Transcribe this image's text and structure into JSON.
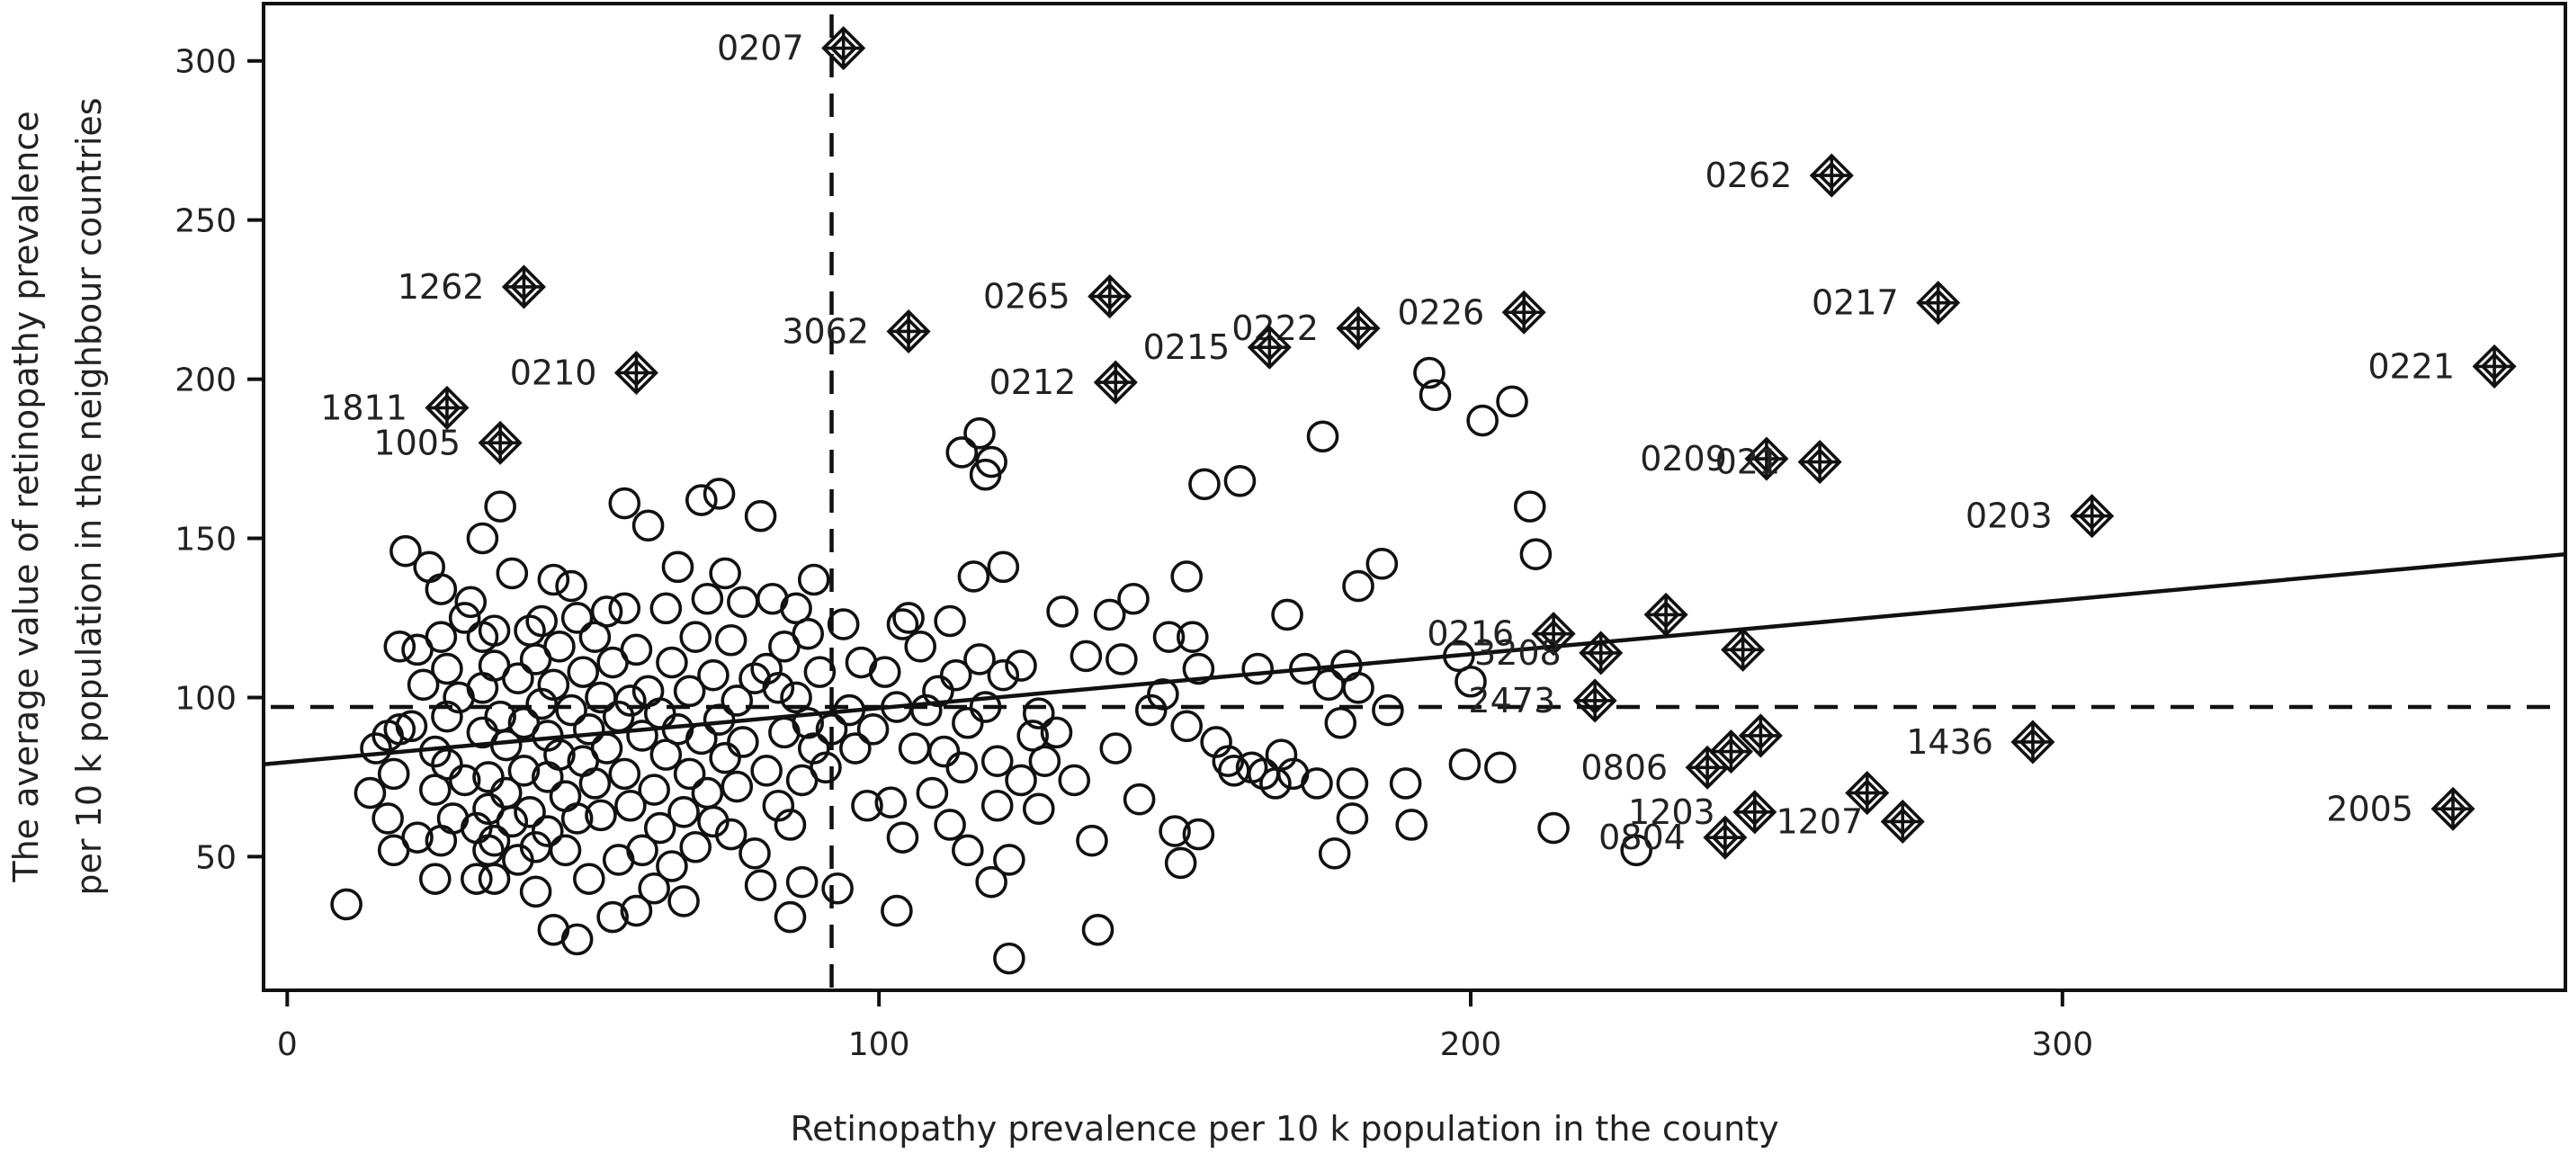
{
  "chart_data": {
    "type": "scatter",
    "title": "",
    "xlabel": "Retinopathy prevalence per 10 k population in the county",
    "ylabel_lines": [
      "The average value of retinopathy prevalence",
      "per 10 k population in the neighbour countries"
    ],
    "xlim": [
      -4,
      385
    ],
    "ylim": [
      8,
      318
    ],
    "x_ticks": [
      0,
      100,
      200,
      300
    ],
    "y_ticks": [
      50,
      100,
      150,
      200,
      250,
      300
    ],
    "reference_lines": {
      "vertical_x": 92,
      "horizontal_y": 97
    },
    "regression_line": {
      "x": [
        -4,
        385
      ],
      "y": [
        79,
        145
      ]
    },
    "outliers": [
      {
        "label": "0207",
        "x": 94,
        "y": 304
      },
      {
        "label": "0262",
        "x": 261,
        "y": 264
      },
      {
        "label": "1262",
        "x": 40,
        "y": 229
      },
      {
        "label": "0265",
        "x": 139,
        "y": 226
      },
      {
        "label": "0217",
        "x": 279,
        "y": 224
      },
      {
        "label": "0226",
        "x": 209,
        "y": 221
      },
      {
        "label": "0222",
        "x": 181,
        "y": 216
      },
      {
        "label": "3062",
        "x": 105,
        "y": 215
      },
      {
        "label": "0215",
        "x": 166,
        "y": 210
      },
      {
        "label": "0221",
        "x": 373,
        "y": 204
      },
      {
        "label": "0210",
        "x": 59,
        "y": 202
      },
      {
        "label": "0212",
        "x": 140,
        "y": 199
      },
      {
        "label": "1811",
        "x": 27,
        "y": 191
      },
      {
        "label": "1005",
        "x": 36,
        "y": 180
      },
      {
        "label": "0209",
        "x": 250,
        "y": 175
      },
      {
        "label": "021",
        "x": 259,
        "y": 174
      },
      {
        "label": "0203",
        "x": 305,
        "y": 157
      },
      {
        "label": "0216",
        "x": 214,
        "y": 120
      },
      {
        "label": "3208",
        "x": 222,
        "y": 114
      },
      {
        "label": "",
        "x": 233,
        "y": 126
      },
      {
        "label": "",
        "x": 246,
        "y": 115
      },
      {
        "label": "2473",
        "x": 221,
        "y": 99
      },
      {
        "label": "",
        "x": 249,
        "y": 88
      },
      {
        "label": "1436",
        "x": 295,
        "y": 86
      },
      {
        "label": "",
        "x": 244,
        "y": 83
      },
      {
        "label": "0806",
        "x": 240,
        "y": 78
      },
      {
        "label": "",
        "x": 267,
        "y": 70
      },
      {
        "label": "2005",
        "x": 366,
        "y": 65
      },
      {
        "label": "1203",
        "x": 248,
        "y": 64
      },
      {
        "label": "1207",
        "x": 273,
        "y": 61
      },
      {
        "label": "0804",
        "x": 243,
        "y": 56
      }
    ],
    "regular_points": [
      {
        "x": 10,
        "y": 35
      },
      {
        "x": 14,
        "y": 70
      },
      {
        "x": 15,
        "y": 84
      },
      {
        "x": 17,
        "y": 88
      },
      {
        "x": 17,
        "y": 62
      },
      {
        "x": 18,
        "y": 76
      },
      {
        "x": 18,
        "y": 52
      },
      {
        "x": 19,
        "y": 90
      },
      {
        "x": 19,
        "y": 116
      },
      {
        "x": 20,
        "y": 146
      },
      {
        "x": 21,
        "y": 91
      },
      {
        "x": 22,
        "y": 115
      },
      {
        "x": 22,
        "y": 56
      },
      {
        "x": 23,
        "y": 104
      },
      {
        "x": 24,
        "y": 141
      },
      {
        "x": 25,
        "y": 83
      },
      {
        "x": 25,
        "y": 71
      },
      {
        "x": 25,
        "y": 43
      },
      {
        "x": 26,
        "y": 134
      },
      {
        "x": 26,
        "y": 119
      },
      {
        "x": 26,
        "y": 55
      },
      {
        "x": 27,
        "y": 94
      },
      {
        "x": 27,
        "y": 109
      },
      {
        "x": 27,
        "y": 79
      },
      {
        "x": 28,
        "y": 62
      },
      {
        "x": 29,
        "y": 100
      },
      {
        "x": 30,
        "y": 74
      },
      {
        "x": 30,
        "y": 125
      },
      {
        "x": 31,
        "y": 130
      },
      {
        "x": 32,
        "y": 59
      },
      {
        "x": 32,
        "y": 43
      },
      {
        "x": 33,
        "y": 150
      },
      {
        "x": 33,
        "y": 119
      },
      {
        "x": 33,
        "y": 103
      },
      {
        "x": 33,
        "y": 89
      },
      {
        "x": 34,
        "y": 75
      },
      {
        "x": 34,
        "y": 65
      },
      {
        "x": 34,
        "y": 52
      },
      {
        "x": 35,
        "y": 121
      },
      {
        "x": 35,
        "y": 110
      },
      {
        "x": 35,
        "y": 55
      },
      {
        "x": 35,
        "y": 43
      },
      {
        "x": 36,
        "y": 160
      },
      {
        "x": 36,
        "y": 94
      },
      {
        "x": 37,
        "y": 85
      },
      {
        "x": 37,
        "y": 70
      },
      {
        "x": 38,
        "y": 139
      },
      {
        "x": 38,
        "y": 61
      },
      {
        "x": 39,
        "y": 106
      },
      {
        "x": 39,
        "y": 49
      },
      {
        "x": 40,
        "y": 92
      },
      {
        "x": 40,
        "y": 77
      },
      {
        "x": 41,
        "y": 121
      },
      {
        "x": 41,
        "y": 64
      },
      {
        "x": 42,
        "y": 112
      },
      {
        "x": 42,
        "y": 53
      },
      {
        "x": 42,
        "y": 39
      },
      {
        "x": 43,
        "y": 124
      },
      {
        "x": 43,
        "y": 98
      },
      {
        "x": 44,
        "y": 88
      },
      {
        "x": 44,
        "y": 75
      },
      {
        "x": 44,
        "y": 58
      },
      {
        "x": 45,
        "y": 104
      },
      {
        "x": 45,
        "y": 27
      },
      {
        "x": 45,
        "y": 137
      },
      {
        "x": 46,
        "y": 82
      },
      {
        "x": 46,
        "y": 116
      },
      {
        "x": 47,
        "y": 69
      },
      {
        "x": 47,
        "y": 52
      },
      {
        "x": 48,
        "y": 135
      },
      {
        "x": 48,
        "y": 96
      },
      {
        "x": 49,
        "y": 125
      },
      {
        "x": 49,
        "y": 24
      },
      {
        "x": 49,
        "y": 62
      },
      {
        "x": 50,
        "y": 108
      },
      {
        "x": 50,
        "y": 80
      },
      {
        "x": 51,
        "y": 43
      },
      {
        "x": 51,
        "y": 90
      },
      {
        "x": 52,
        "y": 119
      },
      {
        "x": 52,
        "y": 73
      },
      {
        "x": 53,
        "y": 100
      },
      {
        "x": 53,
        "y": 63
      },
      {
        "x": 54,
        "y": 127
      },
      {
        "x": 54,
        "y": 84
      },
      {
        "x": 55,
        "y": 111
      },
      {
        "x": 55,
        "y": 31
      },
      {
        "x": 56,
        "y": 94
      },
      {
        "x": 56,
        "y": 49
      },
      {
        "x": 57,
        "y": 161
      },
      {
        "x": 57,
        "y": 128
      },
      {
        "x": 57,
        "y": 76
      },
      {
        "x": 58,
        "y": 99
      },
      {
        "x": 58,
        "y": 66
      },
      {
        "x": 59,
        "y": 115
      },
      {
        "x": 59,
        "y": 33
      },
      {
        "x": 60,
        "y": 88
      },
      {
        "x": 60,
        "y": 52
      },
      {
        "x": 61,
        "y": 154
      },
      {
        "x": 61,
        "y": 102
      },
      {
        "x": 62,
        "y": 71
      },
      {
        "x": 62,
        "y": 40
      },
      {
        "x": 63,
        "y": 95
      },
      {
        "x": 63,
        "y": 59
      },
      {
        "x": 64,
        "y": 128
      },
      {
        "x": 64,
        "y": 82
      },
      {
        "x": 65,
        "y": 111
      },
      {
        "x": 65,
        "y": 47
      },
      {
        "x": 66,
        "y": 141
      },
      {
        "x": 66,
        "y": 90
      },
      {
        "x": 67,
        "y": 64
      },
      {
        "x": 67,
        "y": 36
      },
      {
        "x": 68,
        "y": 102
      },
      {
        "x": 68,
        "y": 76
      },
      {
        "x": 69,
        "y": 119
      },
      {
        "x": 69,
        "y": 53
      },
      {
        "x": 70,
        "y": 162
      },
      {
        "x": 70,
        "y": 87
      },
      {
        "x": 71,
        "y": 131
      },
      {
        "x": 71,
        "y": 70
      },
      {
        "x": 72,
        "y": 107
      },
      {
        "x": 72,
        "y": 61
      },
      {
        "x": 73,
        "y": 164
      },
      {
        "x": 73,
        "y": 93
      },
      {
        "x": 74,
        "y": 139
      },
      {
        "x": 74,
        "y": 81
      },
      {
        "x": 75,
        "y": 118
      },
      {
        "x": 75,
        "y": 57
      },
      {
        "x": 76,
        "y": 99
      },
      {
        "x": 76,
        "y": 72
      },
      {
        "x": 77,
        "y": 130
      },
      {
        "x": 77,
        "y": 86
      },
      {
        "x": 79,
        "y": 106
      },
      {
        "x": 79,
        "y": 51
      },
      {
        "x": 80,
        "y": 157
      },
      {
        "x": 80,
        "y": 41
      },
      {
        "x": 81,
        "y": 109
      },
      {
        "x": 81,
        "y": 77
      },
      {
        "x": 82,
        "y": 131
      },
      {
        "x": 83,
        "y": 103
      },
      {
        "x": 83,
        "y": 66
      },
      {
        "x": 84,
        "y": 116
      },
      {
        "x": 84,
        "y": 89
      },
      {
        "x": 85,
        "y": 60
      },
      {
        "x": 85,
        "y": 31
      },
      {
        "x": 86,
        "y": 128
      },
      {
        "x": 86,
        "y": 100
      },
      {
        "x": 87,
        "y": 74
      },
      {
        "x": 87,
        "y": 42
      },
      {
        "x": 88,
        "y": 120
      },
      {
        "x": 88,
        "y": 92
      },
      {
        "x": 89,
        "y": 137
      },
      {
        "x": 89,
        "y": 84
      },
      {
        "x": 90,
        "y": 108
      },
      {
        "x": 91,
        "y": 78
      },
      {
        "x": 92,
        "y": 90
      },
      {
        "x": 93,
        "y": 40
      },
      {
        "x": 94,
        "y": 123
      },
      {
        "x": 95,
        "y": 96
      },
      {
        "x": 96,
        "y": 84
      },
      {
        "x": 97,
        "y": 111
      },
      {
        "x": 98,
        "y": 66
      },
      {
        "x": 99,
        "y": 90
      },
      {
        "x": 101,
        "y": 108
      },
      {
        "x": 102,
        "y": 67
      },
      {
        "x": 103,
        "y": 97
      },
      {
        "x": 103,
        "y": 33
      },
      {
        "x": 104,
        "y": 123
      },
      {
        "x": 104,
        "y": 56
      },
      {
        "x": 105,
        "y": 125
      },
      {
        "x": 106,
        "y": 84
      },
      {
        "x": 107,
        "y": 116
      },
      {
        "x": 108,
        "y": 96
      },
      {
        "x": 109,
        "y": 70
      },
      {
        "x": 110,
        "y": 102
      },
      {
        "x": 111,
        "y": 83
      },
      {
        "x": 112,
        "y": 124
      },
      {
        "x": 112,
        "y": 60
      },
      {
        "x": 113,
        "y": 107
      },
      {
        "x": 114,
        "y": 78
      },
      {
        "x": 114,
        "y": 177
      },
      {
        "x": 115,
        "y": 52
      },
      {
        "x": 115,
        "y": 92
      },
      {
        "x": 116,
        "y": 138
      },
      {
        "x": 117,
        "y": 112
      },
      {
        "x": 117,
        "y": 183
      },
      {
        "x": 118,
        "y": 170
      },
      {
        "x": 118,
        "y": 97
      },
      {
        "x": 119,
        "y": 174
      },
      {
        "x": 119,
        "y": 42
      },
      {
        "x": 120,
        "y": 80
      },
      {
        "x": 120,
        "y": 66
      },
      {
        "x": 121,
        "y": 141
      },
      {
        "x": 121,
        "y": 107
      },
      {
        "x": 122,
        "y": 49
      },
      {
        "x": 122,
        "y": 18
      },
      {
        "x": 124,
        "y": 110
      },
      {
        "x": 124,
        "y": 74
      },
      {
        "x": 126,
        "y": 88
      },
      {
        "x": 127,
        "y": 95
      },
      {
        "x": 127,
        "y": 65
      },
      {
        "x": 128,
        "y": 80
      },
      {
        "x": 130,
        "y": 89
      },
      {
        "x": 131,
        "y": 127
      },
      {
        "x": 133,
        "y": 74
      },
      {
        "x": 135,
        "y": 113
      },
      {
        "x": 136,
        "y": 55
      },
      {
        "x": 137,
        "y": 27
      },
      {
        "x": 139,
        "y": 126
      },
      {
        "x": 140,
        "y": 84
      },
      {
        "x": 141,
        "y": 112
      },
      {
        "x": 143,
        "y": 131
      },
      {
        "x": 144,
        "y": 68
      },
      {
        "x": 146,
        "y": 96
      },
      {
        "x": 148,
        "y": 101
      },
      {
        "x": 149,
        "y": 119
      },
      {
        "x": 150,
        "y": 58
      },
      {
        "x": 151,
        "y": 48
      },
      {
        "x": 152,
        "y": 138
      },
      {
        "x": 152,
        "y": 91
      },
      {
        "x": 153,
        "y": 119
      },
      {
        "x": 154,
        "y": 109
      },
      {
        "x": 155,
        "y": 167
      },
      {
        "x": 154,
        "y": 57
      },
      {
        "x": 157,
        "y": 86
      },
      {
        "x": 159,
        "y": 80
      },
      {
        "x": 160,
        "y": 77
      },
      {
        "x": 161,
        "y": 168
      },
      {
        "x": 163,
        "y": 78
      },
      {
        "x": 164,
        "y": 109
      },
      {
        "x": 165,
        "y": 76
      },
      {
        "x": 167,
        "y": 73
      },
      {
        "x": 168,
        "y": 82
      },
      {
        "x": 169,
        "y": 126
      },
      {
        "x": 170,
        "y": 76
      },
      {
        "x": 172,
        "y": 109
      },
      {
        "x": 174,
        "y": 73
      },
      {
        "x": 175,
        "y": 182
      },
      {
        "x": 176,
        "y": 104
      },
      {
        "x": 177,
        "y": 51
      },
      {
        "x": 178,
        "y": 92
      },
      {
        "x": 179,
        "y": 110
      },
      {
        "x": 180,
        "y": 62
      },
      {
        "x": 180,
        "y": 73
      },
      {
        "x": 181,
        "y": 135
      },
      {
        "x": 181,
        "y": 103
      },
      {
        "x": 185,
        "y": 142
      },
      {
        "x": 186,
        "y": 96
      },
      {
        "x": 189,
        "y": 73
      },
      {
        "x": 190,
        "y": 60
      },
      {
        "x": 193,
        "y": 202
      },
      {
        "x": 194,
        "y": 195
      },
      {
        "x": 198,
        "y": 113
      },
      {
        "x": 199,
        "y": 79
      },
      {
        "x": 200,
        "y": 105
      },
      {
        "x": 202,
        "y": 187
      },
      {
        "x": 205,
        "y": 78
      },
      {
        "x": 207,
        "y": 193
      },
      {
        "x": 210,
        "y": 160
      },
      {
        "x": 211,
        "y": 145
      },
      {
        "x": 214,
        "y": 59
      },
      {
        "x": 228,
        "y": 52
      }
    ]
  }
}
